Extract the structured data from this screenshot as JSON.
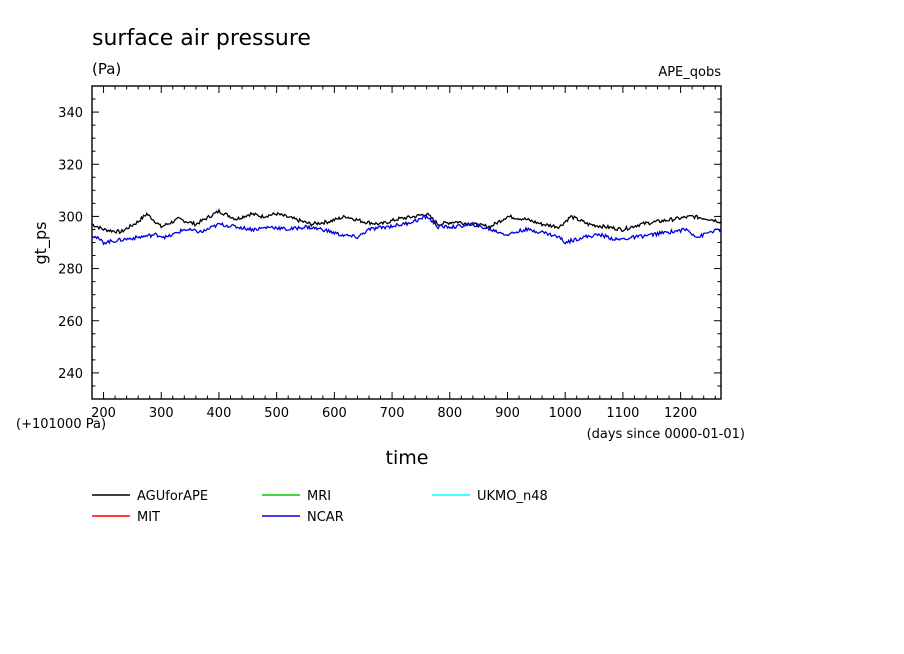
{
  "chart_data": {
    "type": "line",
    "title": "surface air pressure",
    "units": "(Pa)",
    "experiment": "APE_qobs",
    "ylabel": "gt_ps",
    "xlabel": "time",
    "x_unit_note": "(days since 0000-01-01)",
    "y_offset_note": "(+101000 Pa)",
    "xlim": [
      180,
      1270
    ],
    "ylim": [
      230,
      350
    ],
    "xticks": [
      200,
      300,
      400,
      500,
      600,
      700,
      800,
      900,
      1000,
      1100,
      1200
    ],
    "yticks": [
      240,
      260,
      280,
      300,
      320,
      340
    ],
    "grid": false,
    "legend_position": "bottom-left",
    "series": [
      {
        "name": "AGUforAPE",
        "color": "#000000",
        "x": [
          180,
          200,
          230,
          260,
          275,
          300,
          330,
          360,
          400,
          430,
          455,
          475,
          500,
          530,
          560,
          590,
          620,
          650,
          680,
          710,
          740,
          760,
          780,
          810,
          840,
          870,
          900,
          930,
          960,
          990,
          1010,
          1040,
          1070,
          1100,
          1130,
          1160,
          1190,
          1220,
          1250,
          1270
        ],
        "values": [
          297,
          295,
          294,
          298,
          301,
          296,
          299,
          297,
          302,
          299,
          301,
          300,
          301,
          299,
          297,
          298,
          300,
          298,
          297,
          299,
          300,
          301,
          297,
          298,
          297,
          296,
          300,
          299,
          297,
          296,
          300,
          297,
          296,
          295,
          297,
          298,
          299,
          300,
          299,
          298
        ]
      },
      {
        "name": "MIT",
        "color": "#ff0000",
        "x": [],
        "values": []
      },
      {
        "name": "MRI",
        "color": "#00cc00",
        "x": [],
        "values": []
      },
      {
        "name": "NCAR",
        "color": "#0000dd",
        "x": [
          180,
          200,
          230,
          260,
          290,
          310,
          340,
          370,
          400,
          430,
          460,
          490,
          520,
          550,
          580,
          610,
          640,
          660,
          690,
          720,
          750,
          760,
          780,
          810,
          840,
          870,
          900,
          930,
          960,
          990,
          1000,
          1030,
          1060,
          1090,
          1120,
          1150,
          1180,
          1210,
          1230,
          1250,
          1270
        ],
        "values": [
          293,
          290,
          291,
          292,
          293,
          292,
          295,
          294,
          297,
          296,
          295,
          296,
          295,
          296,
          295,
          293,
          292,
          295,
          296,
          297,
          299,
          300,
          296,
          296,
          297,
          295,
          293,
          295,
          294,
          292,
          290,
          292,
          293,
          291,
          292,
          293,
          294,
          295,
          292,
          294,
          295
        ]
      },
      {
        "name": "UKMO_n48",
        "color": "#00ffff",
        "x": [],
        "values": []
      }
    ]
  }
}
